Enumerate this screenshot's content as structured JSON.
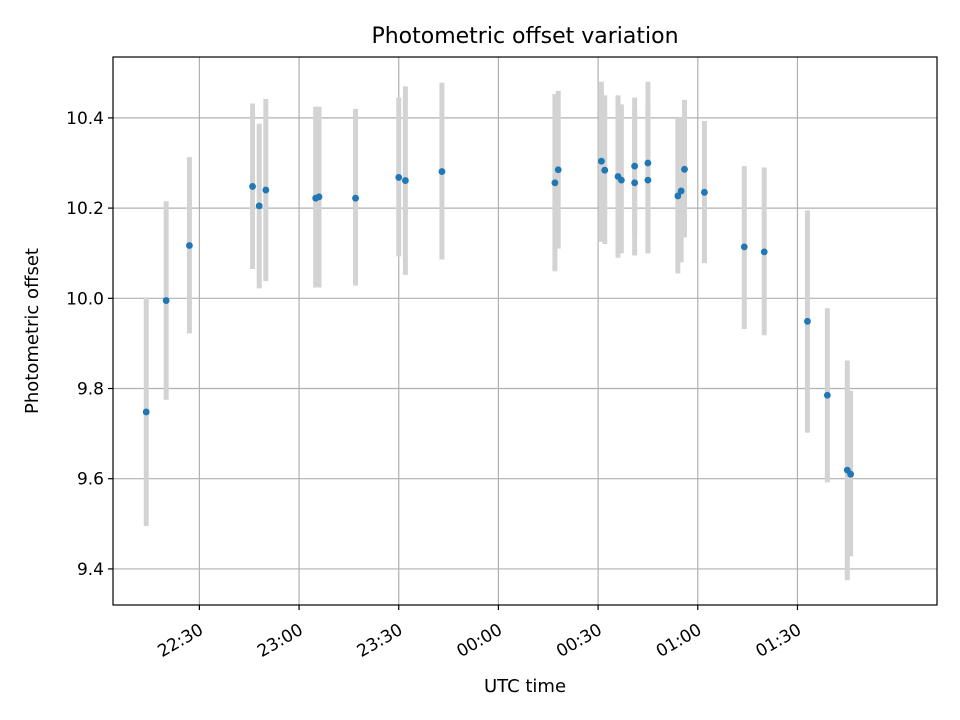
{
  "chart_data": {
    "type": "scatter",
    "title": "Photometric offset variation",
    "xlabel": "UTC time",
    "ylabel": "Photometric offset",
    "xlim": [
      "22:04",
      "02:12"
    ],
    "ylim": [
      9.32,
      10.535
    ],
    "grid": true,
    "x_ticks": [
      "22:30",
      "23:00",
      "23:30",
      "00:00",
      "00:30",
      "01:00",
      "01:30"
    ],
    "y_ticks": [
      9.4,
      9.6,
      9.8,
      10.0,
      10.2,
      10.4
    ],
    "colors": {
      "point": "#1f77b4",
      "errorbar": "#d3d3d3"
    },
    "series": [
      {
        "x": [
          "22:14",
          "22:20",
          "22:27",
          "22:46",
          "22:48",
          "22:50",
          "23:05",
          "23:06",
          "23:17",
          "23:30",
          "23:32",
          "23:43",
          "00:17",
          "00:18",
          "00:31",
          "00:32",
          "00:36",
          "00:37",
          "00:41",
          "00:41",
          "00:45",
          "00:45",
          "00:54",
          "00:55",
          "00:56",
          "01:02",
          "01:14",
          "01:20",
          "01:33",
          "01:39",
          "01:45",
          "01:46"
        ],
        "y": [
          9.748,
          9.995,
          10.117,
          10.248,
          10.205,
          10.24,
          10.222,
          10.225,
          10.222,
          10.268,
          10.261,
          10.281,
          10.256,
          10.285,
          10.304,
          10.284,
          10.27,
          10.262,
          10.293,
          10.256,
          10.3,
          10.262,
          10.227,
          10.238,
          10.286,
          10.235,
          10.114,
          10.103,
          9.949,
          9.785,
          9.619,
          9.61
        ],
        "y_low": [
          9.495,
          9.775,
          9.922,
          10.065,
          10.022,
          10.038,
          10.024,
          10.024,
          10.028,
          10.093,
          10.052,
          10.086,
          10.06,
          10.11,
          10.125,
          10.12,
          10.09,
          10.1,
          10.14,
          10.095,
          10.1,
          10.1,
          10.055,
          10.08,
          10.135,
          10.078,
          9.932,
          9.918,
          9.702,
          9.592,
          9.375,
          9.428
        ],
        "y_high": [
          10.002,
          10.215,
          10.313,
          10.432,
          10.387,
          10.442,
          10.425,
          10.425,
          10.42,
          10.445,
          10.47,
          10.478,
          10.453,
          10.46,
          10.48,
          10.45,
          10.45,
          10.43,
          10.445,
          10.418,
          10.48,
          10.425,
          10.4,
          10.4,
          10.44,
          10.393,
          10.293,
          10.29,
          10.195,
          9.978,
          9.862,
          9.795
        ]
      }
    ]
  }
}
